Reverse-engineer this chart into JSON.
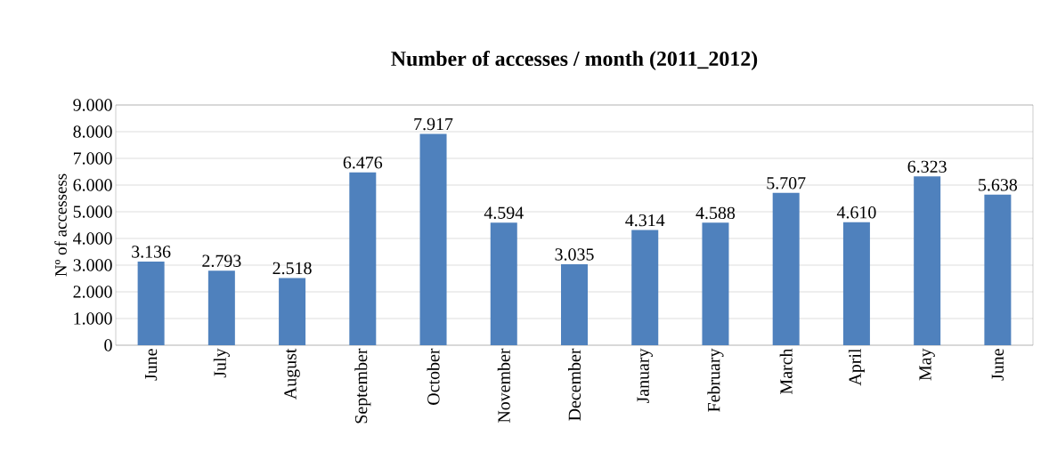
{
  "chart_data": {
    "type": "bar",
    "title": "Number of  accesses / month (2011_2012)",
    "ylabel": "Nº of accessess",
    "categories": [
      "June",
      "July",
      "August",
      "September",
      "October",
      "November",
      "December",
      "January",
      "February",
      "March",
      "April",
      "May",
      "June"
    ],
    "values": [
      3136,
      2793,
      2518,
      6476,
      7917,
      4594,
      3035,
      4314,
      4588,
      5707,
      4610,
      6323,
      5638
    ],
    "value_labels": [
      "3.136",
      "2.793",
      "2.518",
      "6.476",
      "7.917",
      "4.594",
      "3.035",
      "4.314",
      "4.588",
      "5.707",
      "4.610",
      "6.323",
      "5.638"
    ],
    "color": "#4f81bd",
    "ylim": [
      0,
      9000
    ],
    "yticks": [
      0,
      {
        "value": 1000,
        "label": "1.000"
      },
      {
        "value": 2000,
        "label": "2.000"
      },
      {
        "value": 3000,
        "label": "3.000"
      },
      {
        "value": 4000,
        "label": "4.000"
      },
      {
        "value": 5000,
        "label": "5.000"
      },
      {
        "value": 6000,
        "label": "6.000"
      },
      {
        "value": 7000,
        "label": "7.000"
      },
      {
        "value": 8000,
        "label": "8.000"
      },
      {
        "value": 9000,
        "label": "9.000"
      }
    ],
    "grid": "y"
  }
}
